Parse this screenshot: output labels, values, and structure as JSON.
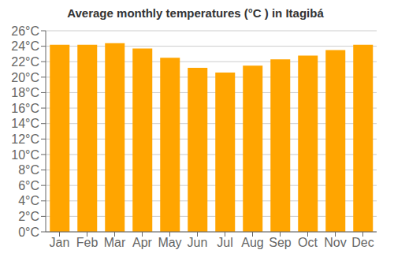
{
  "chart_data": {
    "type": "bar",
    "title": "Average monthly temperatures (°C ) in Itagibá",
    "categories": [
      "Jan",
      "Feb",
      "Mar",
      "Apr",
      "May",
      "Jun",
      "Jul",
      "Aug",
      "Sep",
      "Oct",
      "Nov",
      "Dec"
    ],
    "values": [
      24.2,
      24.2,
      24.4,
      23.7,
      22.5,
      21.2,
      20.6,
      21.5,
      22.3,
      22.8,
      23.5,
      24.2
    ],
    "color": "#FFA500",
    "ylim": [
      0,
      26
    ],
    "yticks": [
      {
        "value": 0,
        "label": "0°C"
      },
      {
        "value": 2,
        "label": "2°C"
      },
      {
        "value": 4,
        "label": "4°C"
      },
      {
        "value": 6,
        "label": "6°C"
      },
      {
        "value": 8,
        "label": "8°C"
      },
      {
        "value": 10,
        "label": "10°C"
      },
      {
        "value": 12,
        "label": "12°C"
      },
      {
        "value": 14,
        "label": "14°C"
      },
      {
        "value": 16,
        "label": "16°C"
      },
      {
        "value": 18,
        "label": "18°C"
      },
      {
        "value": 20,
        "label": "20°C"
      },
      {
        "value": 22,
        "label": "22°C"
      },
      {
        "value": 24,
        "label": "24°C"
      },
      {
        "value": 26,
        "label": "26°C"
      }
    ],
    "grid": true
  }
}
